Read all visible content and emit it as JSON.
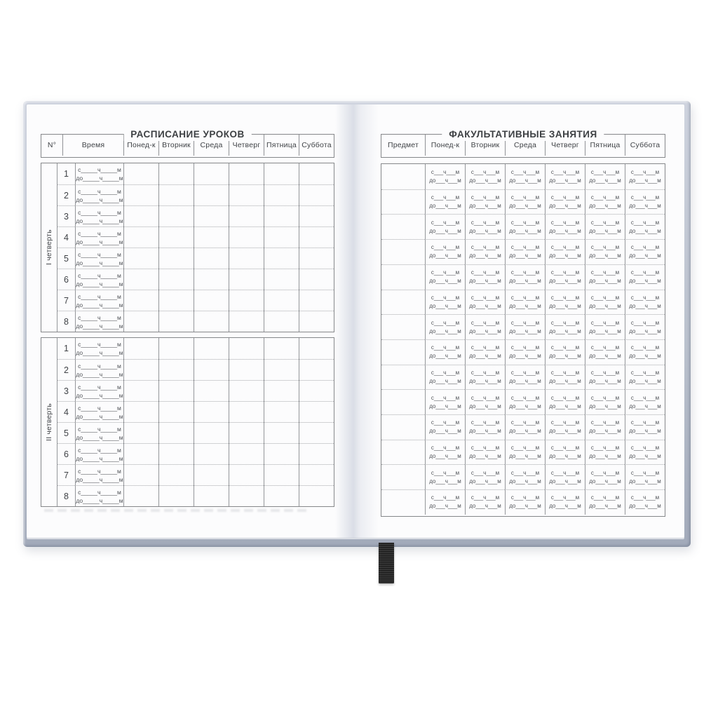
{
  "left_page": {
    "title": "РАСПИСАНИЕ УРОКОВ",
    "columns": [
      "N°",
      "Время",
      "Понед-к",
      "Вторник",
      "Среда",
      "Четверг",
      "Пятница",
      "Суббота"
    ],
    "time_from": "с_____ч_____м",
    "time_to": "до_____ч_____м",
    "quarters": [
      {
        "label": "I четверть",
        "lessons": [
          "1",
          "2",
          "3",
          "4",
          "5",
          "6",
          "7",
          "8"
        ]
      },
      {
        "label": "II четверть",
        "lessons": [
          "1",
          "2",
          "3",
          "4",
          "5",
          "6",
          "7",
          "8"
        ]
      }
    ]
  },
  "right_page": {
    "title": "ФАКУЛЬТАТИВНЫЕ ЗАНЯТИЯ",
    "columns": [
      "Предмет",
      "Понед-к",
      "Вторник",
      "Среда",
      "Четверг",
      "Пятница",
      "Суббота"
    ],
    "row_count": 14,
    "time_from": "с___ч___м",
    "time_to": "до___ч___м"
  },
  "colors": {
    "page": "#fcfcfd",
    "table_border": "#85878a",
    "dotted_line": "#a6a8ab",
    "text": "#3d4043",
    "cover_edge": "#aeb5c3",
    "ribbon": "#242424"
  }
}
